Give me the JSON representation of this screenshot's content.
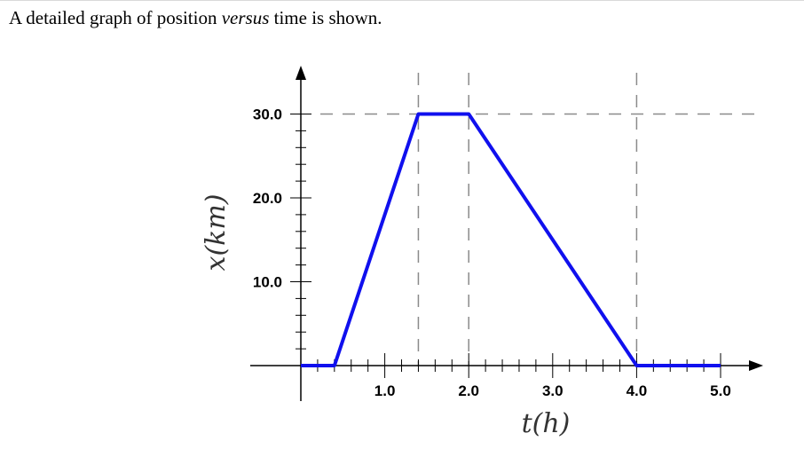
{
  "question": {
    "prefix": "A detailed graph of position ",
    "emphasis": "versus",
    "suffix": " time is shown."
  },
  "chart_data": {
    "type": "line",
    "title": "",
    "xlabel": "t(h)",
    "ylabel": "x(km)",
    "xlim": [
      0,
      5.0
    ],
    "ylim": [
      0,
      30.0
    ],
    "x_ticks": [
      "1.0",
      "2.0",
      "3.0",
      "4.0",
      "5.0"
    ],
    "x_tick_values": [
      1.0,
      2.0,
      3.0,
      4.0,
      5.0
    ],
    "y_ticks": [
      "10.0",
      "20.0",
      "30.0"
    ],
    "y_tick_values": [
      10.0,
      20.0,
      30.0
    ],
    "x_minor_step": 0.2,
    "y_minor_step": 2.0,
    "reference_lines": {
      "vertical": [
        1.4,
        2.0,
        4.0
      ],
      "horizontal": [
        30.0
      ]
    },
    "series": [
      {
        "color": "#1010ee",
        "x": [
          0,
          0.4,
          1.4,
          2.0,
          4.0,
          5.0
        ],
        "y": [
          0,
          0,
          30.0,
          30.0,
          0,
          0
        ]
      }
    ]
  }
}
